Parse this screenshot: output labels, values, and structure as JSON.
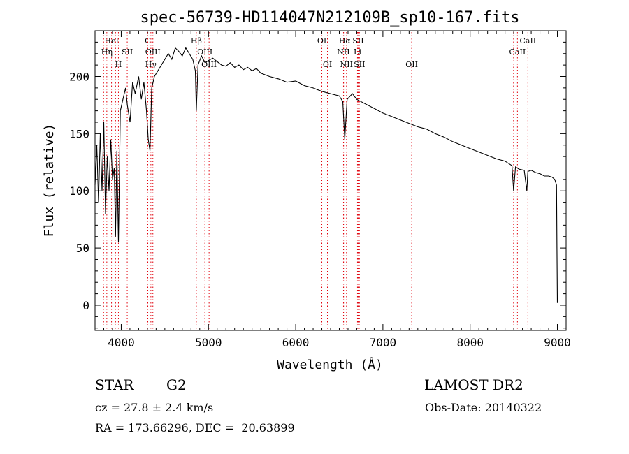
{
  "chart_data": {
    "type": "line",
    "title": "spec-56739-HD114047N212109B_sp10-167.fits",
    "xlabel": "Wavelength (Å)",
    "ylabel": "Flux (relative)",
    "xlim": [
      3700,
      9100
    ],
    "ylim": [
      -22,
      240
    ],
    "xticks": [
      4000,
      5000,
      6000,
      7000,
      8000,
      9000
    ],
    "yticks": [
      0,
      50,
      100,
      150,
      200
    ],
    "line_color": "#000000",
    "marker_color": "#e0000b",
    "grid": false,
    "series": [
      {
        "x": [
          3700,
          3720,
          3740,
          3760,
          3780,
          3800,
          3820,
          3840,
          3860,
          3880,
          3900,
          3920,
          3935,
          3950,
          3968,
          3990,
          4020,
          4050,
          4070,
          4101,
          4130,
          4160,
          4200,
          4230,
          4260,
          4290,
          4310,
          4330,
          4350,
          4380,
          4420,
          4460,
          4500,
          4540,
          4580,
          4620,
          4660,
          4700,
          4740,
          4780,
          4820,
          4850,
          4861,
          4880,
          4920,
          4960,
          5000,
          5050,
          5100,
          5150,
          5200,
          5250,
          5300,
          5350,
          5400,
          5450,
          5500,
          5550,
          5600,
          5700,
          5800,
          5900,
          6000,
          6100,
          6200,
          6300,
          6400,
          6500,
          6540,
          6563,
          6590,
          6650,
          6700,
          6800,
          6900,
          7000,
          7100,
          7200,
          7300,
          7400,
          7500,
          7600,
          7700,
          7800,
          7900,
          8000,
          8100,
          8200,
          8300,
          8400,
          8480,
          8498,
          8520,
          8560,
          8620,
          8650,
          8662,
          8700,
          8750,
          8800,
          8850,
          8900,
          8940,
          8970,
          8990,
          8995,
          9000
        ],
        "values": [
          105,
          140,
          90,
          150,
          100,
          160,
          80,
          130,
          100,
          145,
          110,
          120,
          60,
          135,
          55,
          170,
          180,
          190,
          175,
          160,
          195,
          185,
          200,
          180,
          195,
          170,
          145,
          135,
          190,
          200,
          205,
          210,
          215,
          220,
          215,
          225,
          222,
          218,
          225,
          220,
          215,
          205,
          170,
          210,
          218,
          212,
          214,
          216,
          213,
          210,
          209,
          212,
          208,
          210,
          206,
          208,
          205,
          207,
          203,
          200,
          198,
          195,
          196,
          192,
          190,
          187,
          185,
          183,
          178,
          145,
          180,
          185,
          180,
          176,
          172,
          168,
          165,
          162,
          159,
          156,
          154,
          150,
          147,
          143,
          140,
          137,
          134,
          131,
          128,
          126,
          122,
          100,
          121,
          119,
          118,
          100,
          117,
          118,
          116,
          115,
          113,
          113,
          112,
          110,
          105,
          50,
          2
        ]
      }
    ],
    "line_markers": [
      {
        "label": "HeI",
        "x": 3889,
        "row": 1
      },
      {
        "label": "Hη",
        "x": 3835,
        "row": 2
      },
      {
        "label": "SII",
        "x": 4069,
        "row": 2
      },
      {
        "label": "H",
        "x": 3968,
        "row": 3
      },
      {
        "label": "G",
        "x": 4305,
        "row": 1
      },
      {
        "label": "OIII",
        "x": 4363,
        "row": 2
      },
      {
        "label": "Hγ",
        "x": 4340,
        "row": 3
      },
      {
        "label": "Hβ",
        "x": 4861,
        "row": 1
      },
      {
        "label": "OIII",
        "x": 4959,
        "row": 2
      },
      {
        "label": "OIII",
        "x": 5007,
        "row": 3
      },
      {
        "label": "OI",
        "x": 6300,
        "row": 1
      },
      {
        "label": "OI",
        "x": 6364,
        "row": 3
      },
      {
        "label": "Hα",
        "x": 6563,
        "row": 1
      },
      {
        "label": "SII",
        "x": 6716,
        "row": 1
      },
      {
        "label": "NII",
        "x": 6548,
        "row": 2
      },
      {
        "label": "Li",
        "x": 6708,
        "row": 2
      },
      {
        "label": "NII",
        "x": 6583,
        "row": 3
      },
      {
        "label": "SII",
        "x": 6731,
        "row": 3
      },
      {
        "label": "OII",
        "x": 7330,
        "row": 3
      },
      {
        "label": "CaII",
        "x": 8662,
        "row": 1
      },
      {
        "label": "CaII",
        "x": 8542,
        "row": 2
      }
    ],
    "extra_marker_lines": [
      3798,
      3935,
      8498
    ]
  },
  "info": {
    "object_type": "STAR",
    "object_class": "G2",
    "survey": "LAMOST DR2",
    "redshift": "cz = 27.8 ± 2.4 km/s",
    "obs_date": "Obs-Date: 20140322",
    "coords": "RA = 173.66296, DEC =  20.63899"
  }
}
